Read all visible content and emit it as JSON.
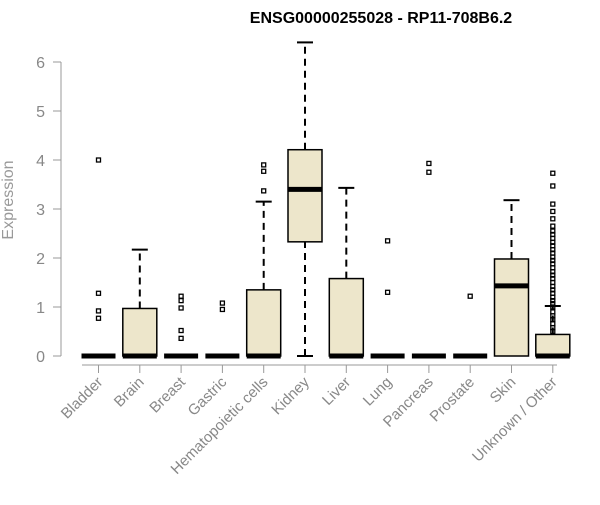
{
  "chart_data": {
    "type": "box",
    "title": "ENSG00000255028 - RP11-708B6.2",
    "xlabel": "",
    "ylabel": "Expression",
    "ylim": [
      0,
      6.5
    ],
    "yticks": [
      0,
      1,
      2,
      3,
      4,
      5,
      6
    ],
    "grid": false,
    "legend": "none",
    "colors": {
      "box_fill": "#ede6cb",
      "box_stroke": "#000000",
      "axis": "#999999",
      "text": "#888888",
      "title": "#000000"
    },
    "categories": [
      "Bladder",
      "Brain",
      "Breast",
      "Gastric",
      "Hematopoietic cells",
      "Kidney",
      "Liver",
      "Lung",
      "Pancreas",
      "Prostate",
      "Skin",
      "Unknown / Other"
    ],
    "boxes": [
      {
        "category": "Bladder",
        "q1": 0,
        "median": 0,
        "q3": 0,
        "whisker_low": 0,
        "whisker_high": 0,
        "outliers": [
          0.77,
          0.92,
          1.28,
          4.0
        ]
      },
      {
        "category": "Brain",
        "q1": 0,
        "median": 0,
        "q3": 0.97,
        "whisker_low": 0,
        "whisker_high": 2.17,
        "outliers": []
      },
      {
        "category": "Breast",
        "q1": 0,
        "median": 0,
        "q3": 0,
        "whisker_low": 0,
        "whisker_high": 0,
        "outliers": [
          0.36,
          0.52,
          0.98,
          1.13,
          1.22
        ]
      },
      {
        "category": "Gastric",
        "q1": 0,
        "median": 0,
        "q3": 0,
        "whisker_low": 0,
        "whisker_high": 0,
        "outliers": [
          0.95,
          1.08
        ]
      },
      {
        "category": "Hematopoietic cells",
        "q1": 0,
        "median": 0,
        "q3": 1.35,
        "whisker_low": 0,
        "whisker_high": 3.15,
        "outliers": [
          3.37,
          3.77,
          3.9
        ]
      },
      {
        "category": "Kidney",
        "q1": 2.33,
        "median": 3.4,
        "q3": 4.21,
        "whisker_low": 0,
        "whisker_high": 6.4,
        "outliers": []
      },
      {
        "category": "Liver",
        "q1": 0,
        "median": 0,
        "q3": 1.58,
        "whisker_low": 0,
        "whisker_high": 3.43,
        "outliers": []
      },
      {
        "category": "Lung",
        "q1": 0,
        "median": 0,
        "q3": 0,
        "whisker_low": 0,
        "whisker_high": 0,
        "outliers": [
          1.3,
          2.35
        ]
      },
      {
        "category": "Pancreas",
        "q1": 0,
        "median": 0,
        "q3": 0,
        "whisker_low": 0,
        "whisker_high": 0,
        "outliers": [
          3.75,
          3.93
        ]
      },
      {
        "category": "Prostate",
        "q1": 0,
        "median": 0,
        "q3": 0,
        "whisker_low": 0,
        "whisker_high": 0,
        "outliers": [
          1.22
        ]
      },
      {
        "category": "Skin",
        "q1": 0,
        "median": 1.43,
        "q3": 1.98,
        "whisker_low": 0,
        "whisker_high": 3.18,
        "outliers": []
      },
      {
        "category": "Unknown / Other",
        "q1": 0,
        "median": 0,
        "q3": 0.44,
        "whisker_low": 0,
        "whisker_high": 1.02,
        "outliers": [
          0.5,
          0.58,
          0.66,
          0.74,
          0.82,
          0.9,
          1.0,
          1.07,
          1.13,
          1.2,
          1.28,
          1.35,
          1.42,
          1.5,
          1.58,
          1.65,
          1.72,
          1.8,
          1.88,
          1.95,
          2.02,
          2.1,
          2.17,
          2.25,
          2.32,
          2.4,
          2.48,
          2.55,
          2.65,
          2.8,
          2.95,
          3.1,
          3.47,
          3.73
        ]
      }
    ]
  }
}
